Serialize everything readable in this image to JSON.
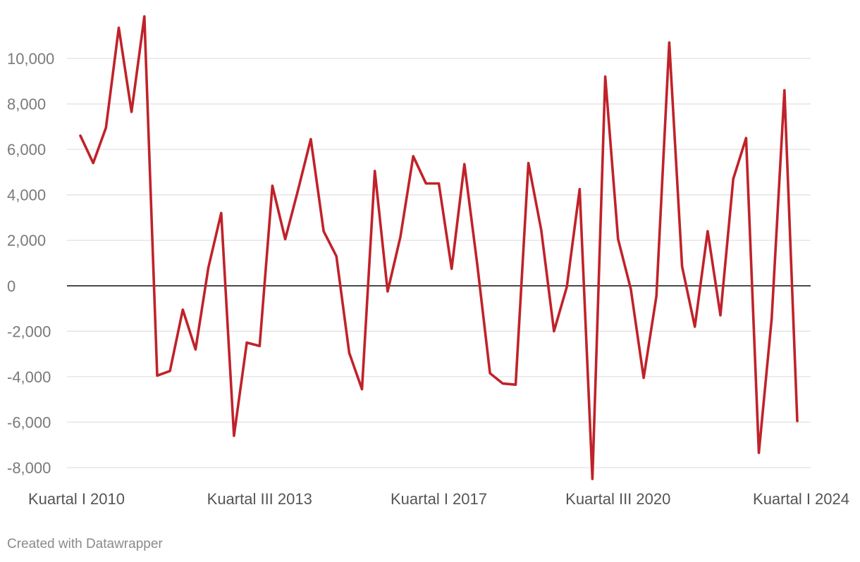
{
  "chart_data": {
    "type": "line",
    "title": "",
    "xlabel": "",
    "ylabel": "",
    "ylim": [
      -8500,
      11900
    ],
    "y_ticks": [
      10000,
      8000,
      6000,
      4000,
      2000,
      0,
      -2000,
      -4000,
      -6000,
      -8000
    ],
    "y_tick_labels": [
      "10,000",
      "8,000",
      "6,000",
      "4,000",
      "2,000",
      "0",
      "-2,000",
      "-4,000",
      "-6,000",
      "-8,000"
    ],
    "x_tick_labels": [
      {
        "label": "Kuartal I 2010",
        "index": 0
      },
      {
        "label": "Kuartal III 2013",
        "index": 14
      },
      {
        "label": "Kuartal I 2017",
        "index": 28
      },
      {
        "label": "Kuartal III 2020",
        "index": 42
      },
      {
        "label": "Kuartal I 2024",
        "index": 56
      }
    ],
    "grid": true,
    "line_color": "#c0222a",
    "series": [
      {
        "values": [
          6600,
          5400,
          6950,
          11350,
          7650,
          11850,
          -3950,
          -3750,
          -1050,
          -2800,
          800,
          3200,
          -6600,
          -2500,
          -2650,
          4400,
          2050,
          4200,
          6450,
          2400,
          1300,
          -2950,
          -4550,
          5050,
          -250,
          2150,
          5700,
          4500,
          4500,
          750,
          5350,
          950,
          -3850,
          -4300,
          -4350,
          5400,
          2450,
          -2000,
          -50,
          4250,
          -8500,
          9200,
          2050,
          -150,
          -4050,
          -450,
          10700,
          850,
          -1800,
          2400,
          -1300,
          4700,
          6500,
          -7350,
          -1450,
          8600,
          -5950
        ]
      }
    ]
  },
  "footer": {
    "credit": "Created with Datawrapper"
  }
}
